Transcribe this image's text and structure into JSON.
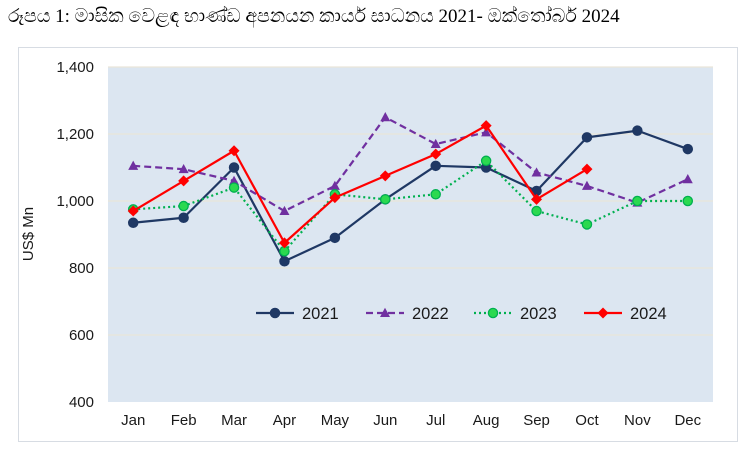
{
  "title": "රූපය 1: මාසික වෙළඳ භාණ්ඩ අපනයන කාර්ය සාධනය 2021- ඔක්තෝබර් 2024",
  "chart_data": {
    "type": "line",
    "title": "රූපය 1: මාසික වෙළඳ භාණ්ඩ අපනයන කාර්ය සාධනය 2021- ඔක්තෝබර් 2024",
    "ylabel": "US$ Mn",
    "xlabel": "",
    "ylim": [
      400,
      1400
    ],
    "yticks": [
      400,
      600,
      800,
      1000,
      1200,
      1400
    ],
    "grid": true,
    "legend_position": "inside-bottom",
    "plot_bg_color": "#dce6f1",
    "gridline_color": "#e9e5da",
    "categories": [
      "Jan",
      "Feb",
      "Mar",
      "Apr",
      "May",
      "Jun",
      "Jul",
      "Aug",
      "Sep",
      "Oct",
      "Nov",
      "Dec"
    ],
    "series": [
      {
        "name": "2021",
        "color": "#1f3864",
        "line_style": "solid",
        "marker": "circle",
        "values": [
          935,
          950,
          1100,
          820,
          890,
          1005,
          1105,
          1100,
          1030,
          1190,
          1210,
          1155
        ]
      },
      {
        "name": "2022",
        "color": "#7030a0",
        "line_style": "dashed",
        "marker": "triangle",
        "values": [
          1105,
          1095,
          1060,
          970,
          1045,
          1250,
          1170,
          1205,
          1085,
          1045,
          995,
          1065
        ]
      },
      {
        "name": "2023",
        "color": "#00b050",
        "marker_fill": "#2bd94f",
        "line_style": "dotted",
        "marker": "circle",
        "values": [
          975,
          985,
          1040,
          850,
          1020,
          1005,
          1020,
          1120,
          970,
          930,
          1000,
          1000
        ]
      },
      {
        "name": "2024",
        "color": "#ff0000",
        "line_style": "solid",
        "marker": "diamond",
        "values": [
          970,
          1060,
          1150,
          875,
          1010,
          1075,
          1140,
          1225,
          1005,
          1095,
          null,
          null
        ]
      }
    ]
  }
}
